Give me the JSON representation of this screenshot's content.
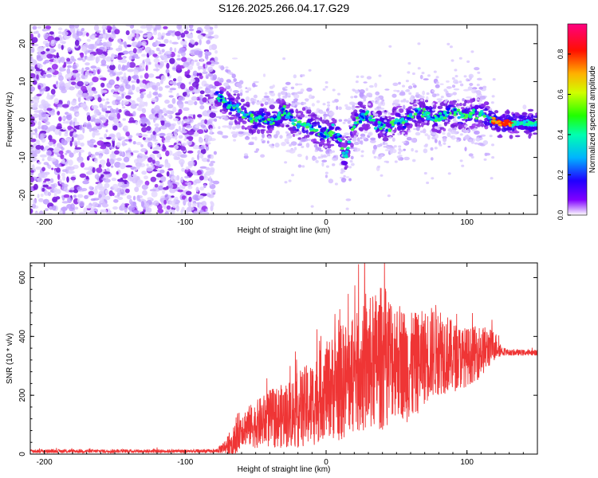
{
  "title": "S126.2025.266.04.17.G29",
  "chart_data": [
    {
      "type": "heatmap",
      "xlabel": "Height of straight line (km)",
      "ylabel": "Frequency (Hz)",
      "xlim": [
        -210,
        150
      ],
      "ylim": [
        -25,
        25
      ],
      "xticks": [
        -200,
        -100,
        0,
        100
      ],
      "yticks": [
        -20,
        -10,
        0,
        10,
        20
      ],
      "noise_region_x": [
        -210,
        -78
      ],
      "ridge": {
        "x": [
          -78,
          -75,
          -70,
          -65,
          -60,
          -55,
          -50,
          -45,
          -40,
          -35,
          -30,
          -25,
          -20,
          -15,
          -10,
          -5,
          0,
          5,
          10,
          13,
          17,
          20,
          25,
          30,
          35,
          40,
          45,
          50,
          55,
          60,
          65,
          70,
          75,
          80,
          85,
          90,
          95,
          100,
          105,
          110,
          115,
          120,
          125,
          130,
          140,
          150
        ],
        "y": [
          7,
          6,
          4,
          3,
          2,
          0.5,
          0,
          0.5,
          -0.5,
          0.5,
          2,
          0.5,
          -1.5,
          -1,
          -2,
          -3,
          -4,
          -3,
          -5,
          -11,
          -5,
          -1,
          0.5,
          1.5,
          -1,
          -1.5,
          -2.5,
          0,
          -1,
          1,
          2,
          1.5,
          1,
          0.5,
          1,
          2,
          1,
          1,
          1.5,
          1.5,
          0.5,
          -0.5,
          -1,
          -1,
          -1,
          -1
        ]
      },
      "colorbar": {
        "label": "Normalized spectral amplitude",
        "range": [
          0,
          0.95
        ],
        "ticks": [
          "0.0",
          "0.2",
          "0.4",
          "0.6",
          "0.8"
        ],
        "colors": [
          "#ffffff",
          "#8000ff",
          "#0000ff",
          "#00c8ff",
          "#00ff60",
          "#80ff00",
          "#ffff00",
          "#ff8000",
          "#ff0000",
          "#ff0080"
        ]
      }
    },
    {
      "type": "line",
      "xlabel": "Height of straight line (km)",
      "ylabel": "SNR (10 * v/v)",
      "xlim": [
        -210,
        150
      ],
      "ylim": [
        0,
        650
      ],
      "xticks": [
        -200,
        -100,
        0,
        100
      ],
      "yticks": [
        0,
        200,
        400,
        600
      ],
      "color": "#ef3535",
      "envelope": {
        "x": [
          -210,
          -150,
          -100,
          -78,
          -70,
          -65,
          -60,
          -50,
          -40,
          -30,
          -20,
          -10,
          0,
          10,
          20,
          30,
          40,
          50,
          60,
          70,
          80,
          90,
          100,
          110,
          120,
          125,
          130,
          140,
          150
        ],
        "mean": [
          10,
          10,
          10,
          10,
          30,
          60,
          90,
          100,
          120,
          130,
          150,
          170,
          220,
          240,
          270,
          300,
          330,
          330,
          290,
          330,
          360,
          330,
          330,
          350,
          370,
          350,
          345,
          345,
          345
        ],
        "amp": [
          6,
          6,
          6,
          6,
          30,
          70,
          60,
          80,
          100,
          110,
          130,
          150,
          160,
          200,
          200,
          230,
          250,
          200,
          190,
          160,
          160,
          120,
          100,
          90,
          50,
          15,
          10,
          10,
          10
        ]
      }
    }
  ]
}
